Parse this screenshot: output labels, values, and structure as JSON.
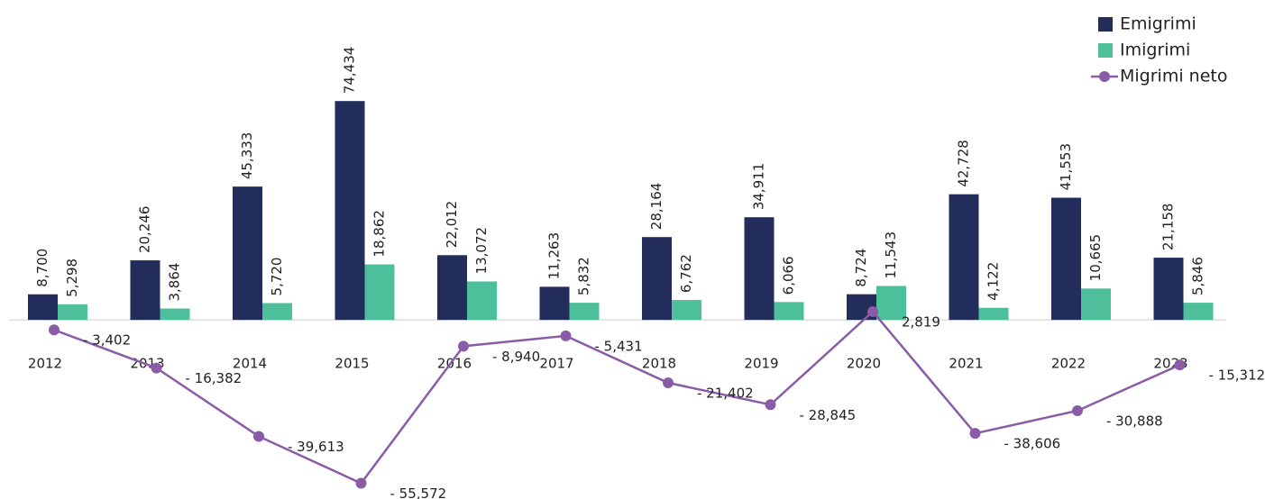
{
  "chart_data": {
    "type": "bar_line",
    "categories": [
      "2012",
      "2013",
      "2014",
      "2015",
      "2016",
      "2017",
      "2018",
      "2019",
      "2020",
      "2021",
      "2022",
      "2023"
    ],
    "series": [
      {
        "name": "Emigrimi",
        "type": "bar",
        "color": "#232d5c",
        "values": [
          8700,
          20246,
          45333,
          74434,
          22012,
          11263,
          28164,
          34911,
          8724,
          42728,
          41553,
          21158
        ],
        "value_labels": [
          "8,700",
          "20,246",
          "45,333",
          "74,434",
          "22,012",
          "11,263",
          "28,164",
          "34,911",
          "8,724",
          "42,728",
          "41,553",
          "21,158"
        ]
      },
      {
        "name": "Imigrimi",
        "type": "bar",
        "color": "#4dbf9a",
        "values": [
          5298,
          3864,
          5720,
          18862,
          13072,
          5832,
          6762,
          6066,
          11543,
          4122,
          10665,
          5846
        ],
        "value_labels": [
          "5,298",
          "3,864",
          "5,720",
          "18,862",
          "13,072",
          "5,832",
          "6,762",
          "6,066",
          "11,543",
          "4,122",
          "10,665",
          "5,846"
        ]
      },
      {
        "name": "Migrimi neto",
        "type": "line",
        "color": "#8a5ca8",
        "values": [
          -3402,
          -16382,
          -39613,
          -55572,
          -8940,
          -5431,
          -21402,
          -28845,
          2819,
          -38606,
          -30888,
          -15312
        ],
        "value_labels": [
          "- 3,402",
          "- 16,382",
          "- 39,613",
          "- 55,572",
          "- 8,940",
          "- 5,431",
          "- 21,402",
          "- 28,845",
          "2,819",
          "- 38,606",
          "- 30,888",
          "- 15,312"
        ]
      }
    ],
    "ylim": [
      -60000,
      80000
    ],
    "legend": "top-right"
  }
}
